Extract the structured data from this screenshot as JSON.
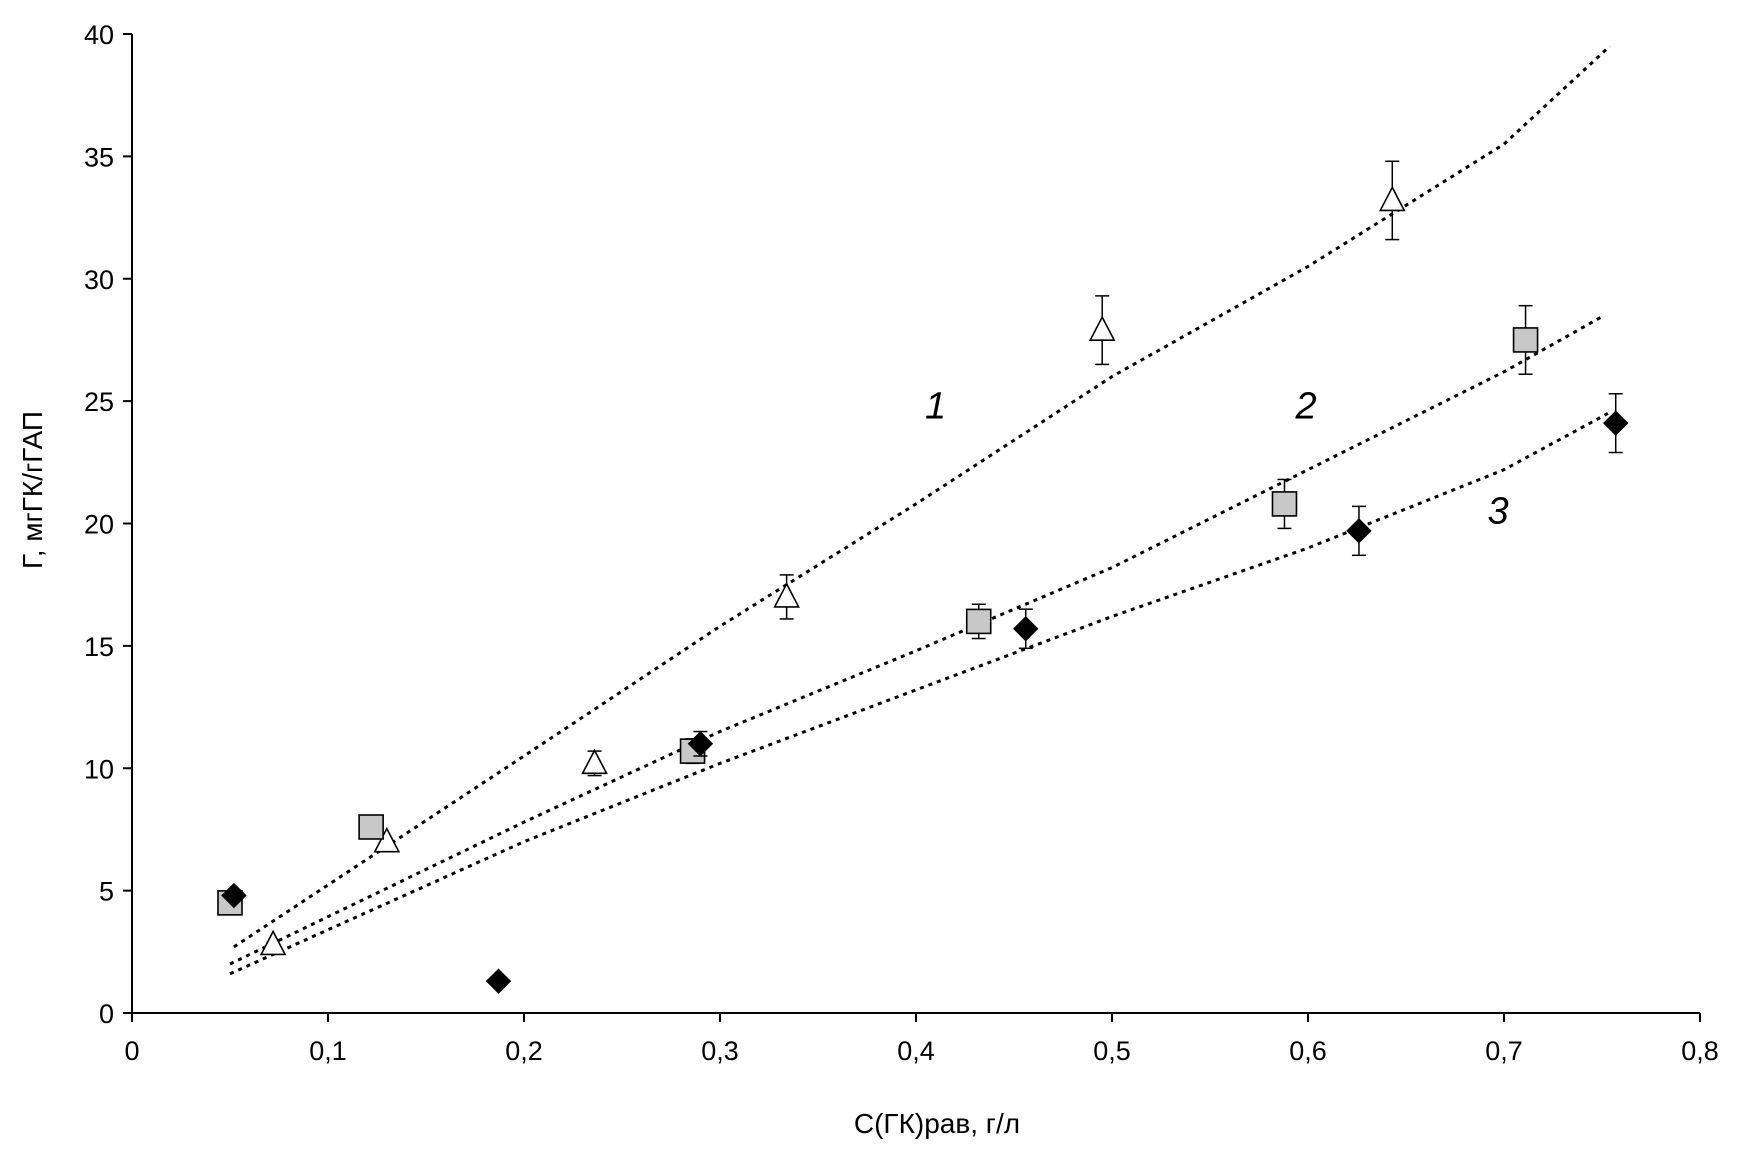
{
  "chart_data": {
    "type": "scatter",
    "title": "",
    "xlabel": "С(ГК)рав, г/л",
    "ylabel": "Г, мгГК/гГАП",
    "xlim": [
      0,
      0.8
    ],
    "ylim": [
      0,
      40
    ],
    "x_ticks": [
      "0",
      "0,1",
      "0,2",
      "0,3",
      "0,4",
      "0,5",
      "0,6",
      "0,7",
      "0,8"
    ],
    "y_ticks": [
      "0",
      "5",
      "10",
      "15",
      "20",
      "25",
      "30",
      "35",
      "40"
    ],
    "grid": false,
    "legend": "none",
    "series": [
      {
        "marker": "triangle-open",
        "color": "#000000",
        "points": [
          {
            "x": 0.072,
            "y": 2.8,
            "err": 0
          },
          {
            "x": 0.13,
            "y": 7.0,
            "err": 0
          },
          {
            "x": 0.236,
            "y": 10.2,
            "err": 0.5
          },
          {
            "x": 0.334,
            "y": 17.0,
            "err": 0.9
          },
          {
            "x": 0.495,
            "y": 27.9,
            "err": 1.4
          },
          {
            "x": 0.643,
            "y": 33.2,
            "err": 1.6
          }
        ],
        "trend": [
          [
            0.052,
            2.7
          ],
          [
            0.2,
            10.5
          ],
          [
            0.3,
            15.8
          ],
          [
            0.4,
            20.8
          ],
          [
            0.5,
            26.0
          ],
          [
            0.6,
            30.5
          ],
          [
            0.7,
            35.5
          ],
          [
            0.754,
            39.5
          ]
        ]
      },
      {
        "marker": "square-gray",
        "color": "#c8c8c8",
        "points": [
          {
            "x": 0.05,
            "y": 4.5,
            "err": 0
          },
          {
            "x": 0.122,
            "y": 7.6,
            "err": 0
          },
          {
            "x": 0.286,
            "y": 10.7,
            "err": 0.5
          },
          {
            "x": 0.432,
            "y": 16.0,
            "err": 0.7
          },
          {
            "x": 0.588,
            "y": 20.8,
            "err": 1.0
          },
          {
            "x": 0.711,
            "y": 27.5,
            "err": 1.4
          }
        ],
        "trend": [
          [
            0.05,
            2.0
          ],
          [
            0.2,
            7.8
          ],
          [
            0.3,
            11.5
          ],
          [
            0.4,
            14.8
          ],
          [
            0.5,
            18.2
          ],
          [
            0.6,
            22.2
          ],
          [
            0.7,
            26.2
          ],
          [
            0.751,
            28.5
          ]
        ]
      },
      {
        "marker": "diamond-filled",
        "color": "#000000",
        "points": [
          {
            "x": 0.052,
            "y": 4.8,
            "err": 0
          },
          {
            "x": 0.187,
            "y": 1.3,
            "err": 0
          },
          {
            "x": 0.29,
            "y": 11.0,
            "err": 0.5
          },
          {
            "x": 0.456,
            "y": 15.7,
            "err": 0.8
          },
          {
            "x": 0.626,
            "y": 19.7,
            "err": 1.0
          },
          {
            "x": 0.757,
            "y": 24.1,
            "err": 1.2
          }
        ],
        "trend": [
          [
            0.05,
            1.6
          ],
          [
            0.2,
            7.0
          ],
          [
            0.3,
            10.2
          ],
          [
            0.4,
            13.2
          ],
          [
            0.5,
            16.2
          ],
          [
            0.6,
            19.0
          ],
          [
            0.7,
            22.2
          ],
          [
            0.753,
            24.5
          ]
        ]
      }
    ],
    "annotations": [
      {
        "text": "1",
        "x": 0.41,
        "y": 24.3
      },
      {
        "text": "2",
        "x": 0.599,
        "y": 24.3
      },
      {
        "text": "3",
        "x": 0.697,
        "y": 20.0
      }
    ]
  }
}
